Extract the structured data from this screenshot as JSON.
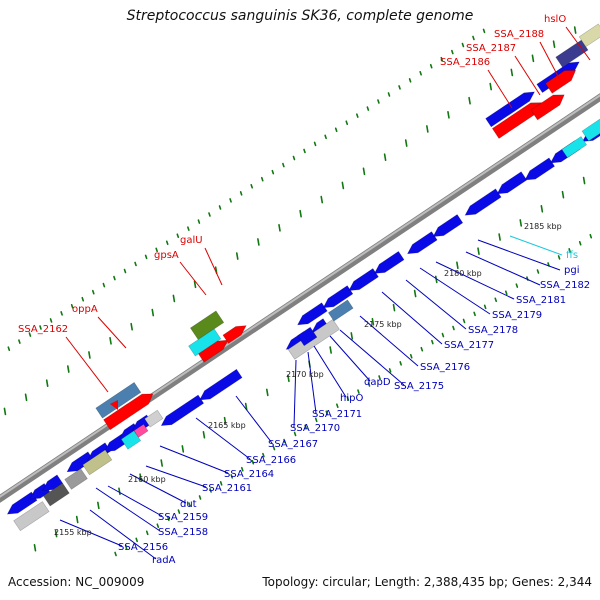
{
  "title": "Streptococcus sanguinis SK36, complete genome",
  "accession": "Accession: NC_009009",
  "summary": "Topology: circular; Length: 2,388,435 bp; Genes: 2,344",
  "colors": {
    "cds": "#0a0ae6",
    "cds_red": "#ff0000",
    "rna_cyan": "#19e3ea",
    "backbone": "#9c9c9c",
    "ticks_green": "#117711",
    "label_red": "#dd0000",
    "label_blue": "#0000bb",
    "label_cyan": "#19c8de"
  },
  "scale_labels": [
    "2155 kbp",
    "2160 kbp",
    "2165 kbp",
    "2170 kbp",
    "2175 kbp",
    "2180 kbp",
    "2185 kbp"
  ],
  "labels_red": [
    "hslO",
    "SSA_2188",
    "SSA_2187",
    "SSA_2186",
    "galU",
    "gpsA",
    "oppA",
    "SSA_2162"
  ],
  "label_cyan": "ffs",
  "labels_blue": [
    "pgi",
    "SSA_2182",
    "SSA_2181",
    "SSA_2179",
    "SSA_2178",
    "SSA_2177",
    "SSA_2176",
    "SSA_2175",
    "dapD",
    "hipO",
    "SSA_2171",
    "SSA_2170",
    "SSA_2167",
    "SSA_2166",
    "SSA_2164",
    "SSA_2161",
    "dut",
    "SSA_2159",
    "SSA_2158",
    "SSA_2156",
    "radA"
  ]
}
